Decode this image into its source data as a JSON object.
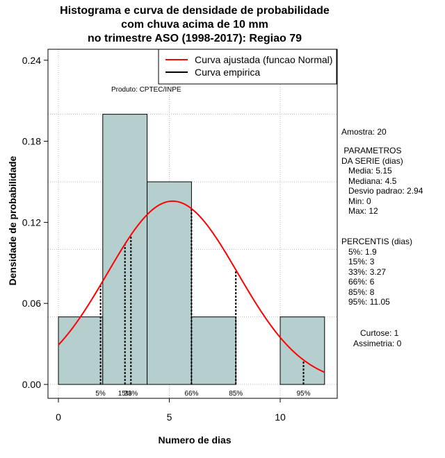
{
  "chart_data": {
    "type": "bar",
    "title_lines": [
      "Histograma e curva de densidade de probabilidade",
      "com chuva acima de 10 mm",
      "no trimestre ASO (1998-2017): Regiao 79"
    ],
    "xlabel": "Numero de dias",
    "ylabel": "Densidade de probabilidade",
    "xlim": [
      -0.8,
      12.5
    ],
    "ylim": [
      -0.01,
      0.25
    ],
    "x_ticks": [
      0,
      5,
      10
    ],
    "y_ticks": [
      0.0,
      0.06,
      0.12,
      0.18,
      0.24
    ],
    "y_tick_labels": [
      "0.00",
      "0.06",
      "0.12",
      "0.18",
      "0.24"
    ],
    "grid": true,
    "bins": [
      {
        "start": 0,
        "end": 2,
        "density": 0.05
      },
      {
        "start": 2,
        "end": 4,
        "density": 0.2
      },
      {
        "start": 4,
        "end": 6,
        "density": 0.15
      },
      {
        "start": 6,
        "end": 8,
        "density": 0.05
      },
      {
        "start": 8,
        "end": 10,
        "density": 0.0
      },
      {
        "start": 10,
        "end": 12,
        "density": 0.05
      }
    ],
    "fitted_curve": {
      "mean": 5.15,
      "sd": 2.94,
      "x_range": [
        0,
        12
      ],
      "color": "#ff0000"
    },
    "percentile_lines": [
      {
        "label": "5%",
        "x": 1.9
      },
      {
        "label": "15%",
        "x": 3
      },
      {
        "label": "33%",
        "x": 3.27
      },
      {
        "label": "66%",
        "x": 6
      },
      {
        "label": "85%",
        "x": 8
      },
      {
        "label": "95%",
        "x": 11.05
      }
    ],
    "legend": [
      {
        "label": "Curva ajustada (funcao Normal)",
        "color": "#ff0000"
      },
      {
        "label": "Curva empirica",
        "color": "#000000"
      }
    ],
    "legend_position": "top-right",
    "annotation": "Produto: CPTEC/INPE",
    "bar_color": "#b5cece"
  },
  "side_panel": {
    "amostra": "Amostra: 20",
    "parametros": [
      " PARAMETROS",
      "DA SERIE (dias)",
      "   Media: 5.15",
      "   Mediana: 4.5",
      "   Desvio padrao: 2.94",
      "   Min: 0",
      "   Max: 12"
    ],
    "percentis": [
      "PERCENTIS (dias)",
      "   5%: 1.9",
      "   15%: 3",
      "   33%: 3.27",
      "   66%: 6",
      "   85%: 8",
      "   95%: 11.05"
    ],
    "curtose": "Curtose: 1",
    "assimetria": "Assimetria: 0"
  }
}
